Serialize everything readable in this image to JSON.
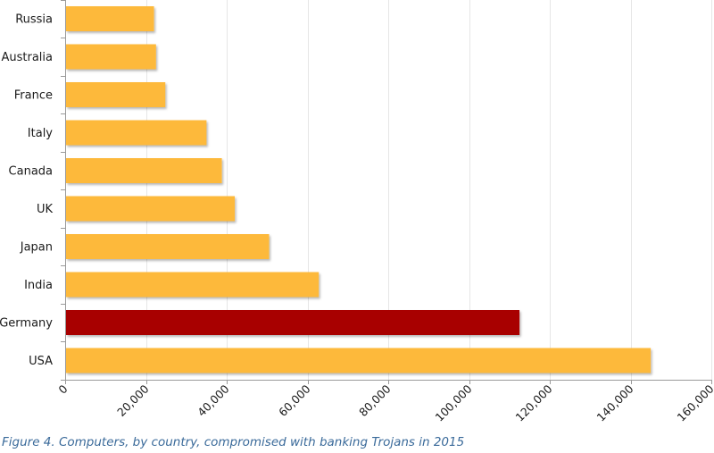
{
  "caption": "Figure 4. Computers, by country, compromised with banking Trojans in 2015",
  "colors": {
    "bar_default": "#FDB93A",
    "bar_highlight": "#A80000",
    "grid": "#E6E6E6",
    "axis": "#9A9A9A",
    "label_text": "#1a1a1a",
    "caption_text": "#3a6a9a"
  },
  "chart_data": {
    "type": "bar",
    "orientation": "horizontal",
    "title": "",
    "xlabel": "",
    "ylabel": "",
    "categories": [
      "Russia",
      "Australia",
      "France",
      "Italy",
      "Canada",
      "UK",
      "Japan",
      "India",
      "Germany",
      "USA"
    ],
    "values": [
      22000,
      22500,
      24800,
      35000,
      38800,
      42000,
      50500,
      62800,
      112500,
      145000
    ],
    "highlight": [
      "default",
      "default",
      "default",
      "default",
      "default",
      "default",
      "default",
      "default",
      "highlight",
      "default"
    ],
    "xlim": [
      0,
      160000
    ],
    "x_ticks": [
      0,
      20000,
      40000,
      60000,
      80000,
      100000,
      120000,
      140000,
      160000
    ],
    "x_tick_labels": [
      "0",
      "20,000",
      "40,000",
      "60,000",
      "80,000",
      "100,000",
      "120,000",
      "140,000",
      "160,000"
    ],
    "grid": true,
    "legend": "none"
  }
}
